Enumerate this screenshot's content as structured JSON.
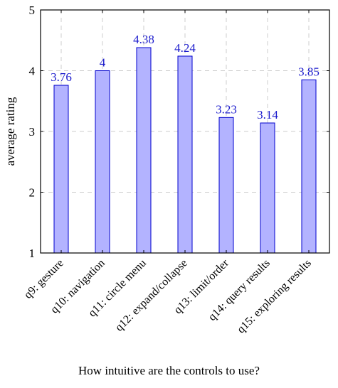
{
  "chart_data": {
    "type": "bar",
    "categories": [
      "q9: gesture",
      "q10: navigation",
      "q11: circle menu",
      "q12: expand/collapse",
      "q13: limit/order",
      "q14: query results",
      "q15: exploring results"
    ],
    "values": [
      3.76,
      4,
      4.38,
      4.24,
      3.23,
      3.14,
      3.85
    ],
    "value_labels": [
      "3.76",
      "4",
      "4.38",
      "4.24",
      "3.23",
      "3.14",
      "3.85"
    ],
    "xlabel": "How intuitive are the controls to use?",
    "ylabel": "average rating",
    "ylim": [
      1,
      5
    ],
    "yticks": [
      "1",
      "2",
      "3",
      "4",
      "5"
    ],
    "grid": true,
    "colors": {
      "bar_fill": "#b3b3ff",
      "bar_stroke": "#0000cc",
      "label": "#1a1acc",
      "grid": "#cccccc"
    }
  }
}
